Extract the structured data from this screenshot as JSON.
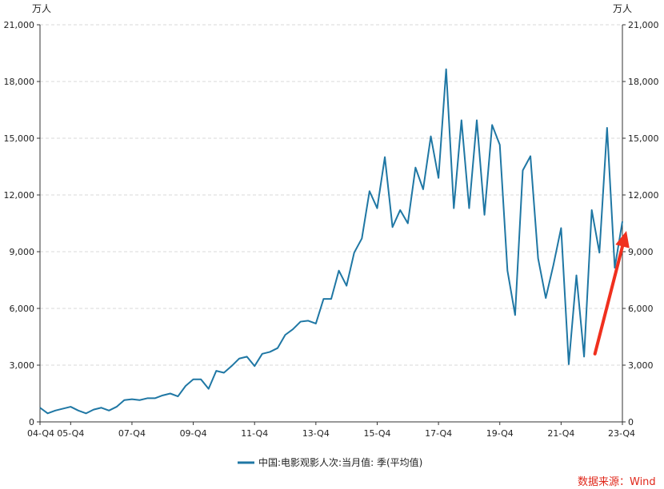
{
  "chart_data": {
    "type": "line",
    "unit_left": "万人",
    "unit_right": "万人",
    "legend_position": "bottom",
    "source": "数据来源：Wind",
    "ylim": [
      0,
      21000
    ],
    "y_ticks": [
      0,
      3000,
      6000,
      9000,
      12000,
      15000,
      18000,
      21000
    ],
    "y_tick_labels": [
      "0",
      "3,000",
      "6,000",
      "9,000",
      "12,000",
      "15,000",
      "18,000",
      "21,000"
    ],
    "x_tick_labels": [
      "04-Q4",
      "05-Q4",
      "07-Q4",
      "09-Q4",
      "11-Q4",
      "13-Q4",
      "15-Q4",
      "17-Q4",
      "19-Q4",
      "21-Q4",
      "23-Q4"
    ],
    "grid": true,
    "colors": {
      "series": "#1f77a4",
      "arrow": "#f0301e",
      "grid": "#d8d8d8",
      "axis": "#333333"
    },
    "series": [
      {
        "name": "中国:电影观影人次:当月值: 季(平均值)",
        "x": [
          "04-Q4",
          "05-Q1",
          "05-Q2",
          "05-Q3",
          "05-Q4",
          "06-Q1",
          "06-Q2",
          "06-Q3",
          "06-Q4",
          "07-Q1",
          "07-Q2",
          "07-Q3",
          "07-Q4",
          "08-Q1",
          "08-Q2",
          "08-Q3",
          "08-Q4",
          "09-Q1",
          "09-Q2",
          "09-Q3",
          "09-Q4",
          "10-Q1",
          "10-Q2",
          "10-Q3",
          "10-Q4",
          "11-Q1",
          "11-Q2",
          "11-Q3",
          "11-Q4",
          "12-Q1",
          "12-Q2",
          "12-Q3",
          "12-Q4",
          "13-Q1",
          "13-Q2",
          "13-Q3",
          "13-Q4",
          "14-Q1",
          "14-Q2",
          "14-Q3",
          "14-Q4",
          "15-Q1",
          "15-Q2",
          "15-Q3",
          "15-Q4",
          "16-Q1",
          "16-Q2",
          "16-Q3",
          "16-Q4",
          "17-Q1",
          "17-Q2",
          "17-Q3",
          "17-Q4",
          "18-Q1",
          "18-Q2",
          "18-Q3",
          "18-Q4",
          "19-Q1",
          "19-Q2",
          "19-Q3",
          "19-Q4",
          "20-Q1",
          "20-Q2",
          "20-Q3",
          "20-Q4",
          "21-Q1",
          "21-Q2",
          "21-Q3",
          "21-Q4",
          "22-Q1",
          "22-Q2",
          "22-Q3",
          "22-Q4",
          "23-Q1",
          "23-Q2",
          "23-Q3",
          "23-Q4"
        ],
        "values": [
          750,
          450,
          600,
          700,
          800,
          600,
          450,
          650,
          750,
          600,
          800,
          1150,
          1200,
          1150,
          1250,
          1250,
          1400,
          1500,
          1350,
          1900,
          2250,
          2250,
          1750,
          2700,
          2600,
          2950,
          3350,
          3450,
          2950,
          3600,
          3700,
          3900,
          4600,
          4900,
          5300,
          5350,
          5200,
          6500,
          6500,
          8000,
          7200,
          8950,
          9700,
          12200,
          11300,
          14000,
          10300,
          11200,
          10500,
          13450,
          12300,
          15100,
          12900,
          18650,
          11300,
          15950,
          11300,
          15950,
          10950,
          15700,
          14650,
          8000,
          5650,
          13300,
          14050,
          8650,
          6550,
          8300,
          10250,
          3050,
          7750,
          3450,
          11200,
          8950,
          15550,
          8150,
          10600
        ]
      }
    ]
  }
}
